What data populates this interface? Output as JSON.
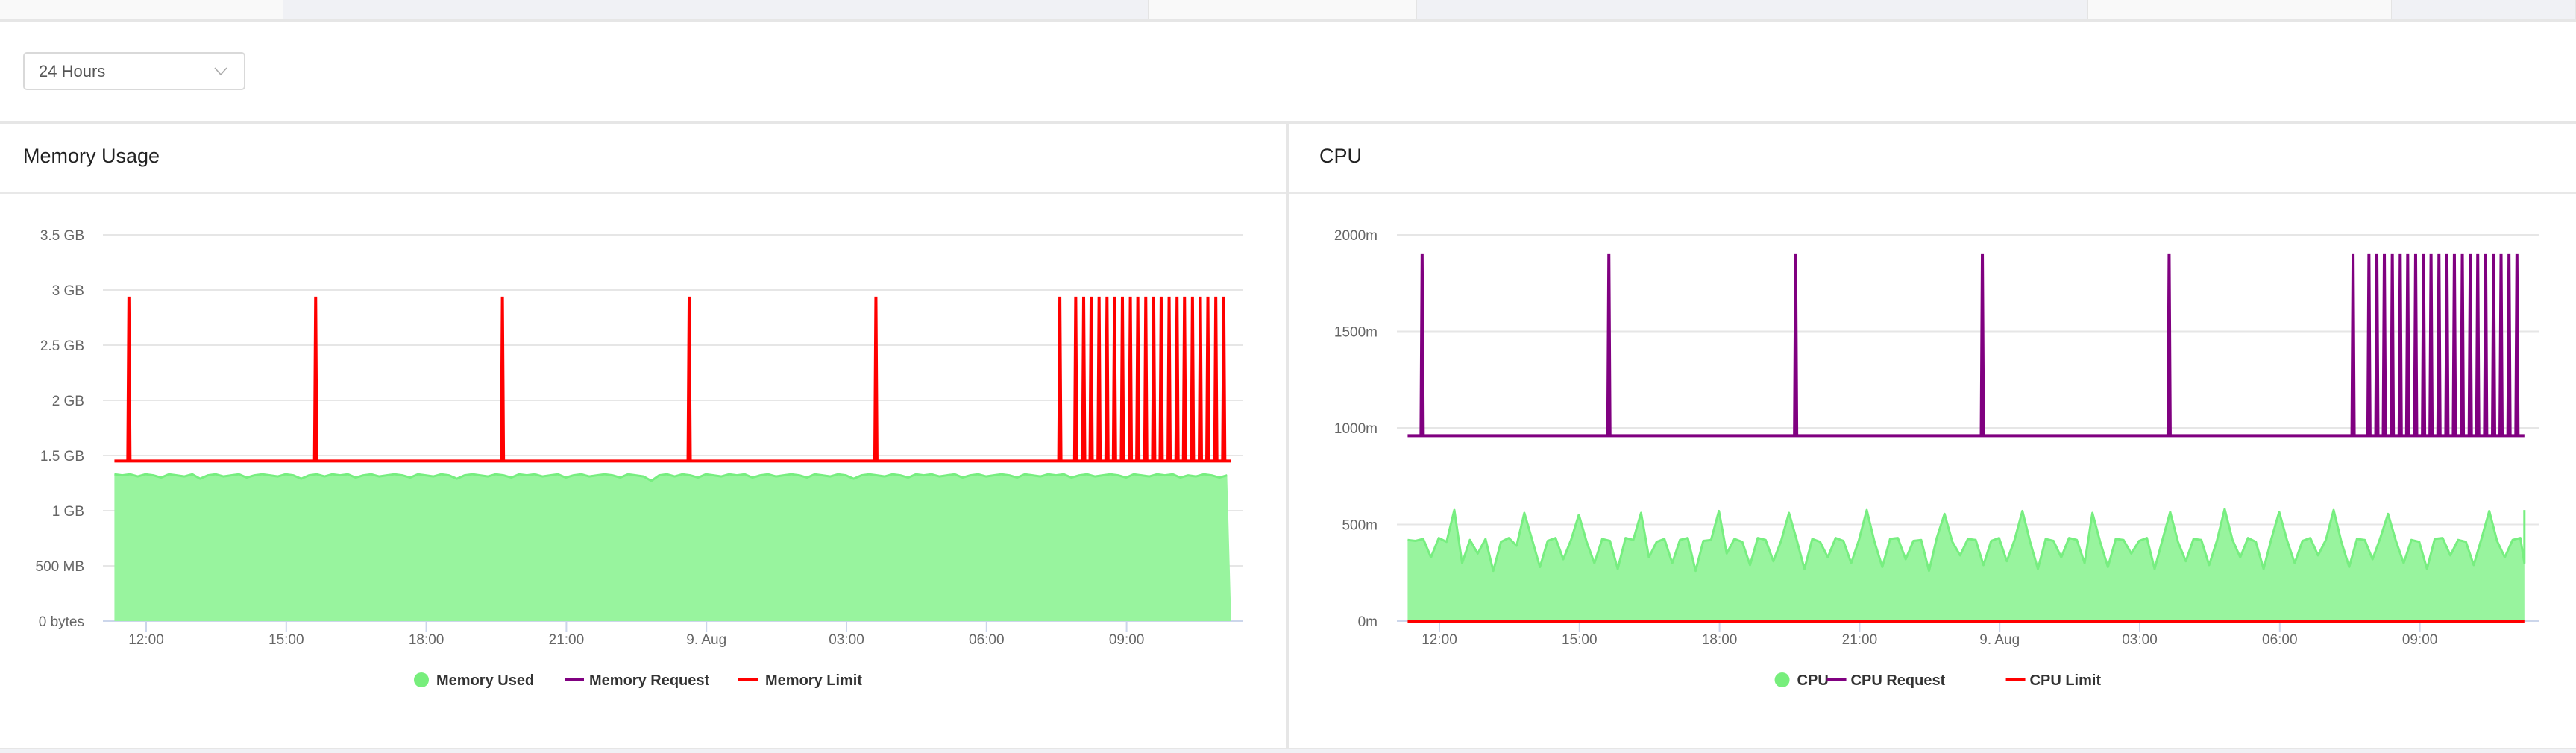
{
  "toolbar": {
    "range_select": {
      "value": "24 Hours",
      "icon": "chevron-down-icon"
    }
  },
  "colors": {
    "used_fill": "#98f49e",
    "used_line": "#77ee80",
    "request": "#800080",
    "limit": "#ff0000",
    "grid": "#e6e6e6",
    "axis": "#ccd6eb"
  },
  "chart_data": [
    {
      "type": "area",
      "title": "Memory Usage",
      "xlabel": "",
      "ylabel": "",
      "x_ticks": [
        "12:00",
        "15:00",
        "18:00",
        "21:00",
        "9. Aug",
        "03:00",
        "06:00",
        "09:00"
      ],
      "y_ticks": [
        "0 bytes",
        "500 MB",
        "1 GB",
        "1.5 GB",
        "2 GB",
        "2.5 GB",
        "3 GB",
        "3.5 GB"
      ],
      "y_unit": "GB",
      "ylim": [
        0,
        3.5
      ],
      "x_range_hours_from_noon": [
        -0.68,
        23.24
      ],
      "grid": true,
      "legend_position": "bottom",
      "legend": [
        "Memory Used",
        "Memory Request",
        "Memory Limit"
      ],
      "series": [
        {
          "name": "Memory Used",
          "kind": "area",
          "sample_interval_min": 10,
          "start_hours_from_noon": -0.68,
          "values": [
            1.33,
            1.32,
            1.33,
            1.31,
            1.33,
            1.32,
            1.3,
            1.33,
            1.32,
            1.31,
            1.33,
            1.29,
            1.32,
            1.33,
            1.31,
            1.32,
            1.33,
            1.3,
            1.32,
            1.33,
            1.32,
            1.31,
            1.33,
            1.32,
            1.29,
            1.32,
            1.33,
            1.31,
            1.33,
            1.32,
            1.33,
            1.3,
            1.32,
            1.33,
            1.31,
            1.32,
            1.33,
            1.32,
            1.3,
            1.33,
            1.32,
            1.31,
            1.33,
            1.32,
            1.29,
            1.32,
            1.33,
            1.32,
            1.31,
            1.33,
            1.32,
            1.3,
            1.33,
            1.32,
            1.33,
            1.31,
            1.32,
            1.33,
            1.3,
            1.32,
            1.33,
            1.31,
            1.32,
            1.33,
            1.32,
            1.3,
            1.33,
            1.32,
            1.31,
            1.27,
            1.32,
            1.33,
            1.31,
            1.33,
            1.32,
            1.3,
            1.33,
            1.32,
            1.31,
            1.33,
            1.32,
            1.33,
            1.3,
            1.32,
            1.33,
            1.31,
            1.32,
            1.33,
            1.32,
            1.3,
            1.33,
            1.32,
            1.31,
            1.33,
            1.32,
            1.29,
            1.32,
            1.33,
            1.32,
            1.31,
            1.33,
            1.32,
            1.3,
            1.33,
            1.32,
            1.33,
            1.31,
            1.32,
            1.33,
            1.3,
            1.32,
            1.33,
            1.31,
            1.32,
            1.33,
            1.32,
            1.3,
            1.33,
            1.32,
            1.31,
            1.33,
            1.32,
            1.33,
            1.3,
            1.32,
            1.33,
            1.31,
            1.32,
            1.33,
            1.32,
            1.3,
            1.33,
            1.32,
            1.31,
            1.33,
            1.32,
            1.33,
            1.3,
            1.32,
            1.31,
            1.33,
            1.32,
            1.3,
            1.32
          ]
        },
        {
          "name": "Memory Request",
          "kind": "line",
          "values": []
        },
        {
          "name": "Memory Limit",
          "kind": "line",
          "base_value": 1.45,
          "spike_value": 2.94,
          "spike_times_hours_from_noon": [
            -0.37,
            3.63,
            7.63,
            11.63,
            15.63,
            19.57,
            19.91,
            20.08,
            20.24,
            20.41,
            20.58,
            20.74,
            20.91,
            21.08,
            21.24,
            21.41,
            21.58,
            21.74,
            21.91,
            22.08,
            22.24,
            22.41,
            22.58,
            22.74,
            22.91,
            23.08
          ]
        }
      ]
    },
    {
      "type": "area",
      "title": "CPU",
      "xlabel": "",
      "ylabel": "",
      "x_ticks": [
        "12:00",
        "15:00",
        "18:00",
        "21:00",
        "9. Aug",
        "03:00",
        "06:00",
        "09:00"
      ],
      "y_ticks": [
        "0m",
        "500m",
        "1000m",
        "1500m",
        "2000m"
      ],
      "y_unit": "millicores",
      "ylim": [
        0,
        2000
      ],
      "x_range_hours_from_noon": [
        -0.68,
        23.24
      ],
      "grid": true,
      "legend_position": "bottom",
      "legend": [
        "CPU",
        "CPU Request",
        "CPU Limit"
      ],
      "series": [
        {
          "name": "CPU",
          "kind": "area",
          "sample_interval_min": 10,
          "start_hours_from_noon": -0.68,
          "values": [
            420,
            415,
            425,
            330,
            430,
            410,
            575,
            300,
            420,
            350,
            425,
            260,
            410,
            430,
            390,
            560,
            420,
            280,
            415,
            430,
            320,
            420,
            550,
            410,
            300,
            425,
            415,
            270,
            430,
            420,
            560,
            330,
            410,
            425,
            300,
            420,
            430,
            260,
            415,
            420,
            570,
            350,
            425,
            410,
            290,
            430,
            420,
            310,
            415,
            560,
            420,
            270,
            425,
            410,
            330,
            430,
            415,
            300,
            420,
            575,
            410,
            280,
            425,
            430,
            320,
            415,
            420,
            260,
            430,
            555,
            410,
            340,
            425,
            420,
            290,
            415,
            430,
            310,
            420,
            570,
            410,
            270,
            425,
            415,
            330,
            430,
            420,
            300,
            560,
            410,
            280,
            425,
            420,
            350,
            415,
            430,
            270,
            420,
            565,
            410,
            310,
            425,
            420,
            290,
            415,
            580,
            420,
            330,
            430,
            410,
            270,
            425,
            565,
            420,
            300,
            415,
            430,
            340,
            420,
            575,
            410,
            280,
            425,
            420,
            320,
            430,
            555,
            415,
            300,
            420,
            410,
            270,
            425,
            430,
            340,
            420,
            410,
            290,
            425,
            570,
            415,
            330,
            420,
            430,
            300,
            575
          ]
        },
        {
          "name": "CPU Request",
          "kind": "line",
          "base_value": 960,
          "spike_value": 1900,
          "spike_times_hours_from_noon": [
            -0.37,
            3.63,
            7.63,
            11.63,
            15.63,
            19.57,
            19.91,
            20.08,
            20.24,
            20.41,
            20.58,
            20.74,
            20.91,
            21.08,
            21.24,
            21.41,
            21.58,
            21.74,
            21.91,
            22.08,
            22.24,
            22.41,
            22.58,
            22.74,
            22.91,
            23.08
          ]
        },
        {
          "name": "CPU Limit",
          "kind": "line",
          "base_value": 0
        }
      ]
    }
  ]
}
